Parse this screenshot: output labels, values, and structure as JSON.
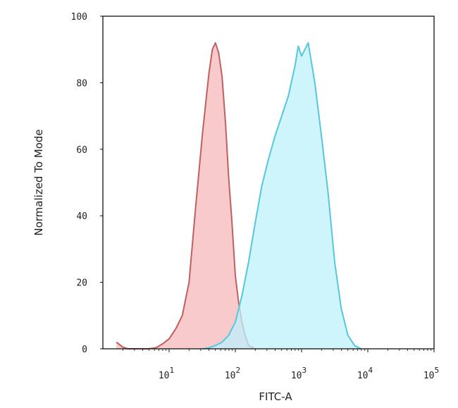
{
  "chart_data": {
    "type": "area",
    "xlabel": "FITC-A",
    "ylabel": "Normalized To Mode",
    "x_scale": "log",
    "xlim": [
      1,
      100000
    ],
    "ylim": [
      0,
      100
    ],
    "x_ticks": [
      {
        "value": 10,
        "base": "10",
        "exp": "1"
      },
      {
        "value": 100,
        "base": "10",
        "exp": "2"
      },
      {
        "value": 1000,
        "base": "10",
        "exp": "3"
      },
      {
        "value": 10000,
        "base": "10",
        "exp": "4"
      },
      {
        "value": 100000,
        "base": "10",
        "exp": "5"
      }
    ],
    "y_ticks": [
      0,
      20,
      40,
      60,
      80,
      100
    ],
    "grid": false,
    "series": [
      {
        "color_line": "#c0605f",
        "color_fill": "#f5b8bb",
        "x": [
          1.6,
          2.0,
          2.4,
          3.2,
          4.8,
          6.3,
          8.0,
          10,
          12.6,
          15.8,
          20,
          25,
          32,
          40,
          45,
          50,
          56,
          63,
          71,
          79,
          89,
          100,
          112,
          126,
          141,
          158,
          200
        ],
        "y": [
          2,
          0.5,
          0,
          0,
          0,
          0.3,
          1.5,
          3,
          6,
          10,
          20,
          42,
          65,
          83,
          90,
          92,
          89,
          82,
          68,
          52,
          38,
          22,
          14,
          8,
          4,
          1,
          0
        ]
      },
      {
        "color_line": "#55c8de",
        "color_fill": "#bdf0fb",
        "x": [
          32,
          40,
          50,
          63,
          79,
          100,
          126,
          158,
          200,
          251,
          316,
          398,
          501,
          631,
          700,
          794,
          891,
          1000,
          1122,
          1259,
          1413,
          1585,
          1778,
          1995,
          2512,
          3162,
          3981,
          5012,
          6310,
          7943
        ],
        "y": [
          0,
          0.3,
          1,
          2,
          4,
          8,
          16,
          26,
          38,
          49,
          57,
          64,
          70,
          76,
          80,
          85,
          91,
          88,
          90,
          92,
          86,
          80,
          72,
          64,
          47,
          26,
          12,
          4,
          1,
          0
        ]
      }
    ]
  }
}
